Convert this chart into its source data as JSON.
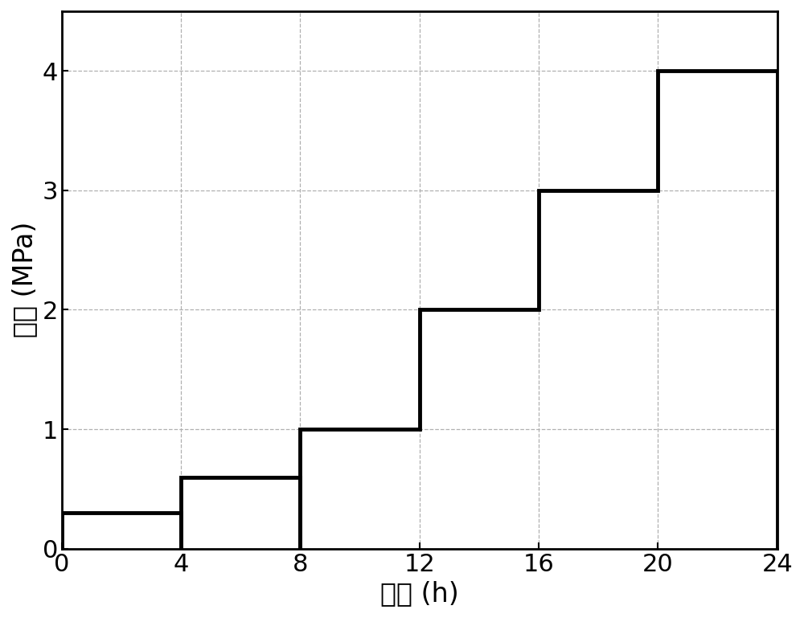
{
  "x_points": [
    0,
    0,
    4,
    4,
    4,
    8,
    8,
    8,
    12,
    12,
    16,
    16,
    20,
    20,
    24,
    24
  ],
  "y_points": [
    0,
    0.3,
    0.3,
    0,
    0.6,
    0.6,
    0,
    1.0,
    1.0,
    2.0,
    2.0,
    3.0,
    3.0,
    4.0,
    4.0,
    0
  ],
  "xlabel": "时间 (h)",
  "ylabel": "应力 (MPa)",
  "xlim": [
    0,
    24
  ],
  "ylim": [
    0,
    4.5
  ],
  "xticks": [
    0,
    4,
    8,
    12,
    16,
    20,
    24
  ],
  "yticks": [
    0,
    1,
    2,
    3,
    4
  ],
  "grid_color": "#b0b0b0",
  "line_color": "#000000",
  "line_width": 3.5,
  "background_color": "#ffffff",
  "tick_fontsize": 22,
  "label_fontsize": 24
}
